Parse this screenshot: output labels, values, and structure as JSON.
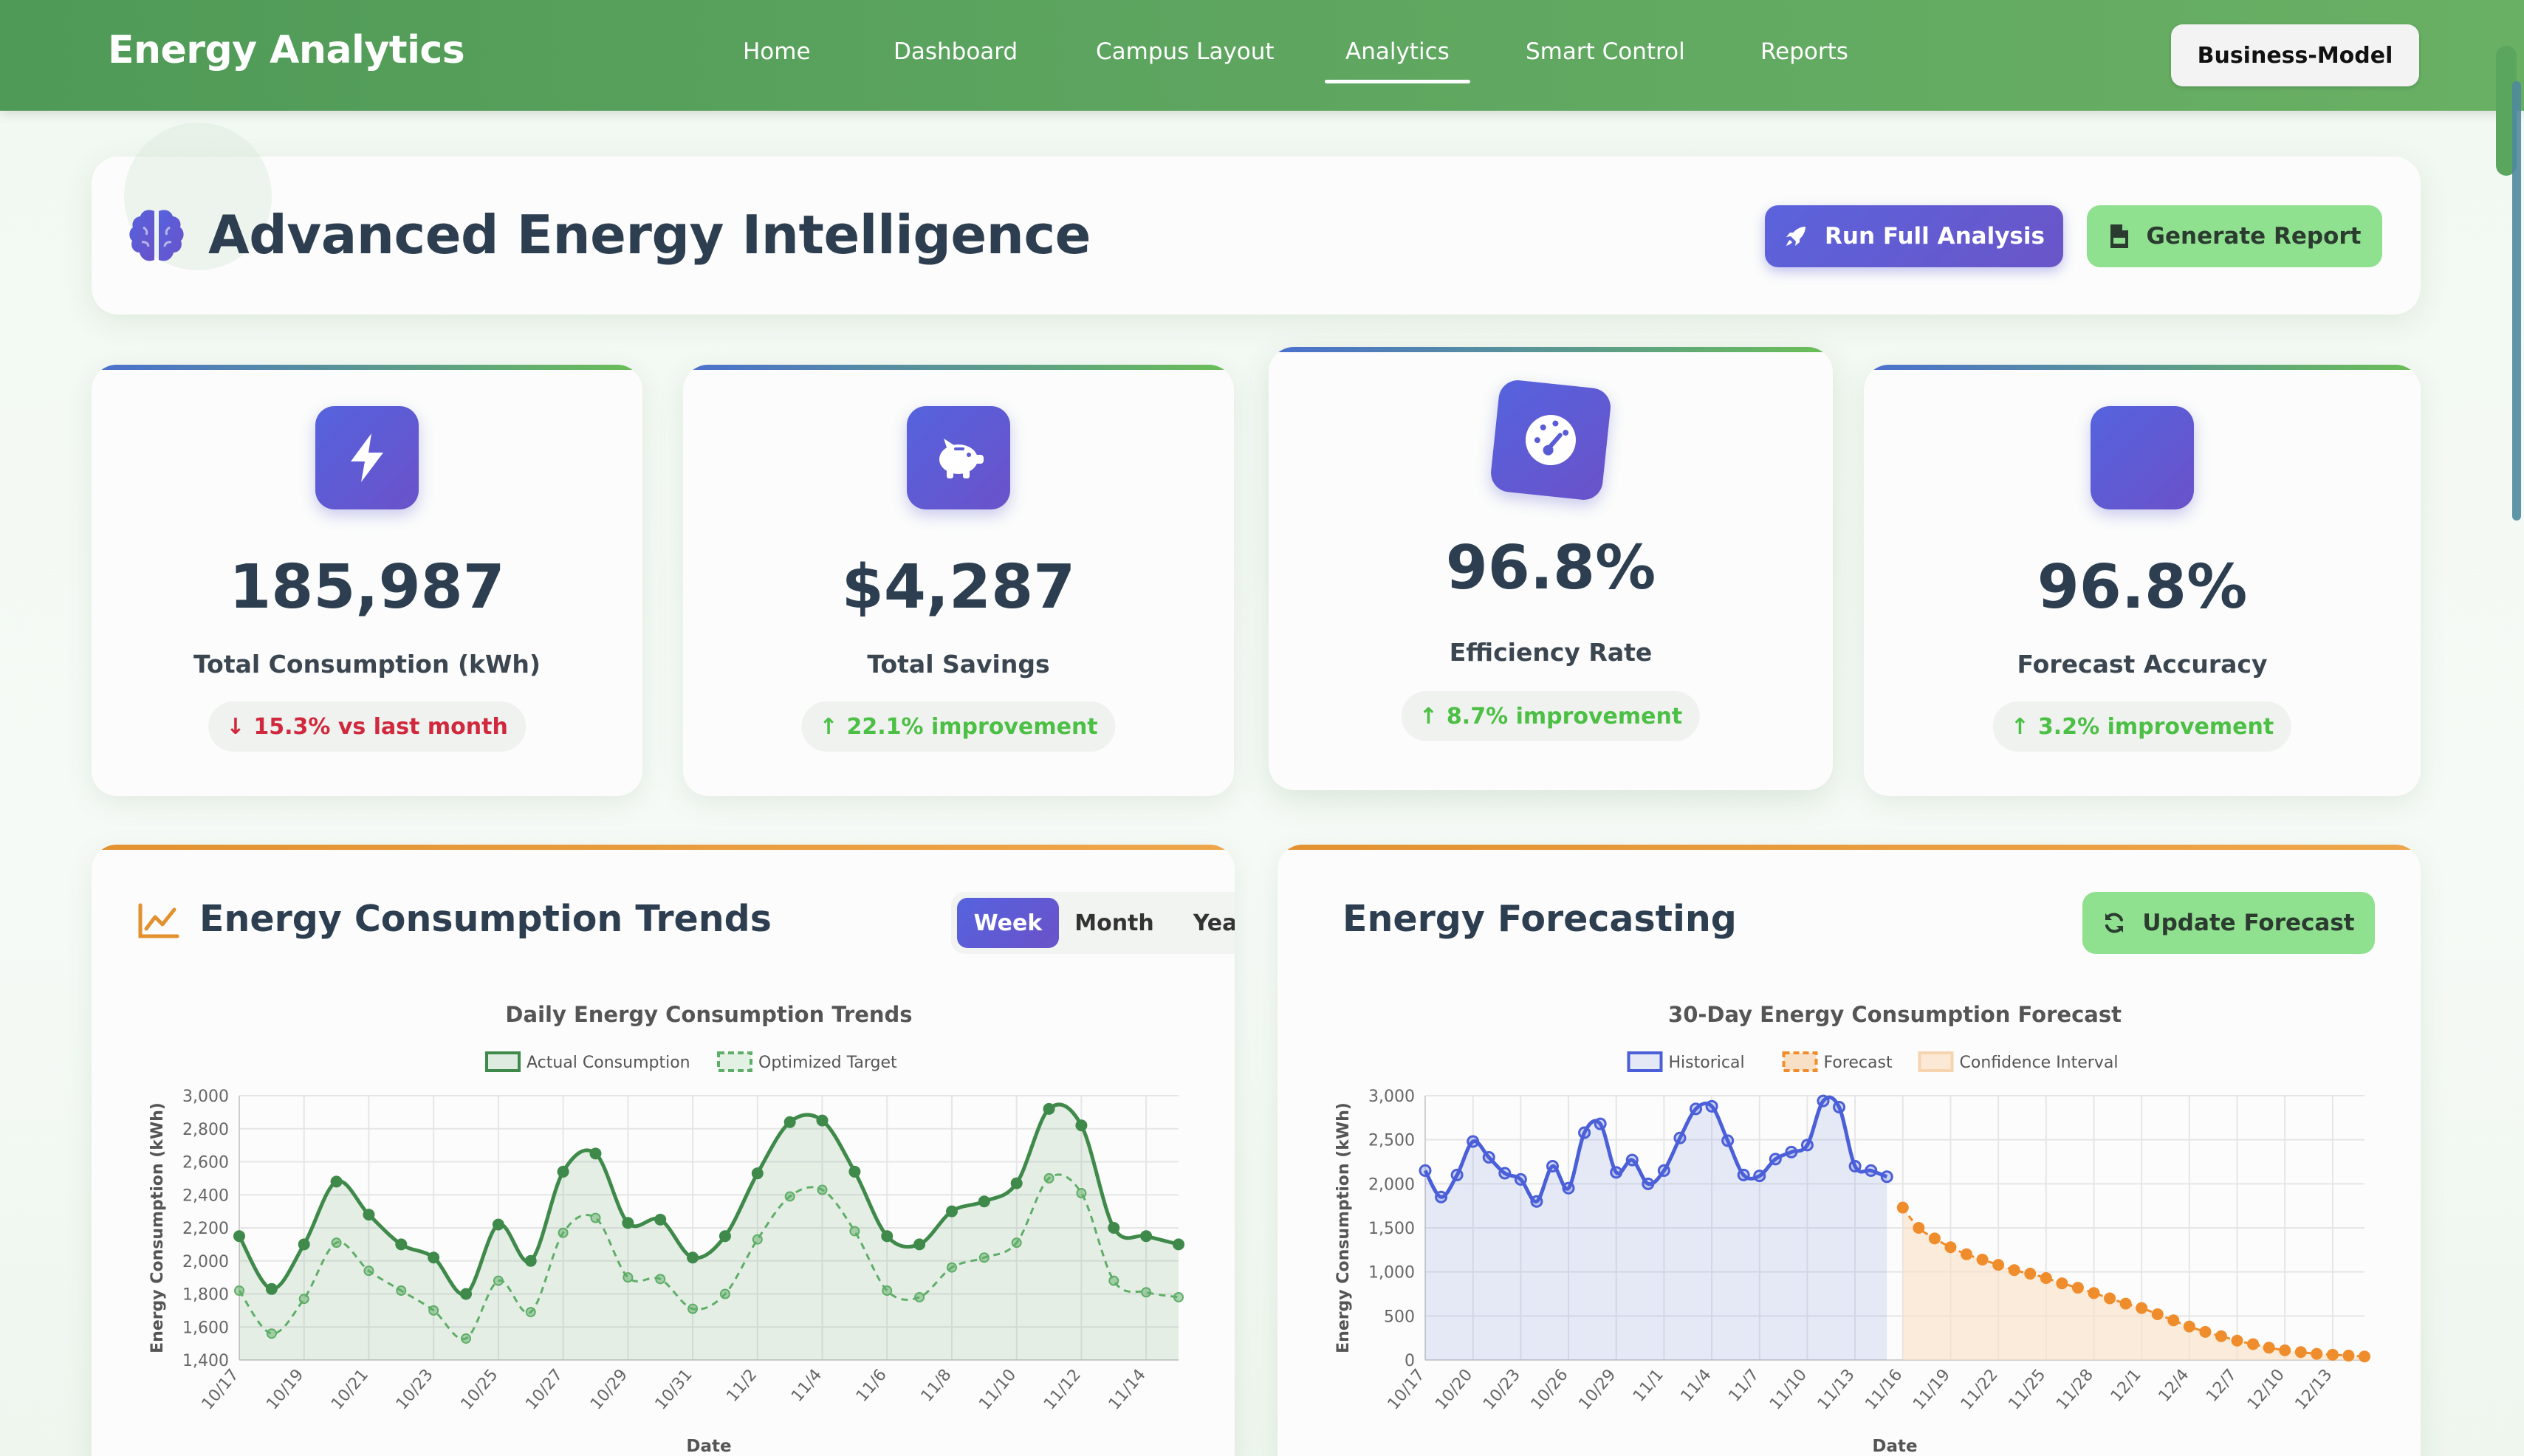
{
  "nav": {
    "brand": "Energy Analytics",
    "links": [
      {
        "label": "Home"
      },
      {
        "label": "Dashboard"
      },
      {
        "label": "Campus Layout"
      },
      {
        "label": "Analytics"
      },
      {
        "label": "Smart Control"
      },
      {
        "label": "Reports"
      }
    ],
    "active": "Analytics",
    "model_button": "Business-Model"
  },
  "header": {
    "title": "Advanced Energy Intelligence",
    "run_button": "Run Full Analysis",
    "report_button": "Generate Report"
  },
  "stats": [
    {
      "value": "185,987",
      "label": "Total Consumption (kWh)",
      "delta": "15.3% vs last month",
      "direction": "down",
      "icon": "bolt-icon"
    },
    {
      "value": "$4,287",
      "label": "Total Savings",
      "delta": "22.1% improvement",
      "direction": "up",
      "icon": "piggy-bank-icon"
    },
    {
      "value": "96.8%",
      "label": "Efficiency Rate",
      "delta": "8.7% improvement",
      "direction": "up",
      "icon": "gauge-icon"
    },
    {
      "value": "96.8%",
      "label": "Forecast Accuracy",
      "delta": "3.2% improvement",
      "direction": "up",
      "icon": ""
    }
  ],
  "trends_panel": {
    "title": "Energy Consumption Trends",
    "ranges": [
      "Week",
      "Month",
      "Year"
    ],
    "active_range": "Week"
  },
  "forecast_panel": {
    "title": "Energy Forecasting",
    "update_button": "Update Forecast"
  },
  "chart_data": [
    {
      "type": "line",
      "title": "Daily Energy Consumption Trends",
      "xlabel": "Date",
      "ylabel": "Energy Consumption (kWh)",
      "ylim": [
        1400,
        3000
      ],
      "yticks": [
        1400,
        1600,
        1800,
        2000,
        2200,
        2400,
        2600,
        2800,
        3000
      ],
      "x": [
        "10/17",
        "10/18",
        "10/19",
        "10/20",
        "10/21",
        "10/22",
        "10/23",
        "10/24",
        "10/25",
        "10/26",
        "10/27",
        "10/28",
        "10/29",
        "10/30",
        "10/31",
        "11/1",
        "11/2",
        "11/3",
        "11/4",
        "11/5",
        "11/6",
        "11/7",
        "11/8",
        "11/9",
        "11/10",
        "11/11",
        "11/12",
        "11/13",
        "11/14",
        "11/15"
      ],
      "xtick_labels": [
        "10/17",
        "10/19",
        "10/21",
        "10/23",
        "10/25",
        "10/27",
        "10/29",
        "10/31",
        "11/2",
        "11/4",
        "11/6",
        "11/8",
        "11/10",
        "11/12",
        "11/14"
      ],
      "legend_position": "top-center",
      "grid": true,
      "series": [
        {
          "name": "Actual Consumption",
          "color": "#3f8a4a",
          "style": "solid",
          "fill": true,
          "values": [
            2150,
            1830,
            2100,
            2480,
            2280,
            2100,
            2020,
            1800,
            2220,
            2000,
            2540,
            2650,
            2230,
            2250,
            2020,
            2150,
            2530,
            2840,
            2850,
            2540,
            2150,
            2100,
            2300,
            2360,
            2470,
            2920,
            2820,
            2200,
            2150,
            2100
          ]
        },
        {
          "name": "Optimized Target",
          "color": "#5fae68",
          "style": "dashed",
          "fill": false,
          "values": [
            1820,
            1560,
            1770,
            2110,
            1940,
            1820,
            1700,
            1530,
            1880,
            1690,
            2170,
            2260,
            1900,
            1890,
            1710,
            1800,
            2130,
            2390,
            2430,
            2180,
            1820,
            1780,
            1960,
            2020,
            2110,
            2500,
            2410,
            1880,
            1810,
            1780
          ]
        }
      ]
    },
    {
      "type": "line",
      "title": "30-Day Energy Consumption Forecast",
      "xlabel": "Date",
      "ylabel": "Energy Consumption (kWh)",
      "ylim": [
        0,
        3000
      ],
      "yticks": [
        0,
        500,
        1000,
        1500,
        2000,
        2500,
        3000
      ],
      "x_start": "10/17",
      "x_end": "12/15",
      "xtick_labels": [
        "10/17",
        "10/20",
        "10/23",
        "10/26",
        "10/29",
        "11/1",
        "11/4",
        "11/7",
        "11/10",
        "11/13",
        "11/16",
        "11/19",
        "11/22",
        "11/25",
        "11/28",
        "12/1",
        "12/4",
        "12/7",
        "12/10",
        "12/13"
      ],
      "legend_position": "top-center",
      "grid": true,
      "series": [
        {
          "name": "Historical",
          "color": "#4a5fd8",
          "style": "solid",
          "fill": true,
          "values": [
            2150,
            1850,
            2100,
            2480,
            2300,
            2120,
            2050,
            1800,
            2200,
            1950,
            2580,
            2680,
            2130,
            2270,
            2000,
            2150,
            2520,
            2850,
            2880,
            2490,
            2100,
            2090,
            2280,
            2360,
            2440,
            2940,
            2870,
            2200,
            2150,
            2080
          ]
        },
        {
          "name": "Forecast",
          "color": "#ef8d2c",
          "style": "dashed",
          "fill": false,
          "values": [
            1730,
            1500,
            1380,
            1280,
            1200,
            1140,
            1080,
            1020,
            980,
            930,
            870,
            820,
            760,
            700,
            640,
            590,
            520,
            450,
            380,
            320,
            270,
            220,
            180,
            140,
            110,
            90,
            70,
            60,
            50,
            40
          ]
        },
        {
          "name": "Confidence Interval",
          "color": "#fbe0c4",
          "style": "band",
          "fill": true,
          "values": [
            1730,
            1500,
            1380,
            1280,
            1200,
            1140,
            1080,
            1020,
            980,
            930,
            870,
            820,
            760,
            700,
            640,
            590,
            520,
            450,
            380,
            320,
            270,
            220,
            180,
            140,
            110,
            90,
            70,
            60,
            50,
            40
          ]
        }
      ]
    }
  ]
}
